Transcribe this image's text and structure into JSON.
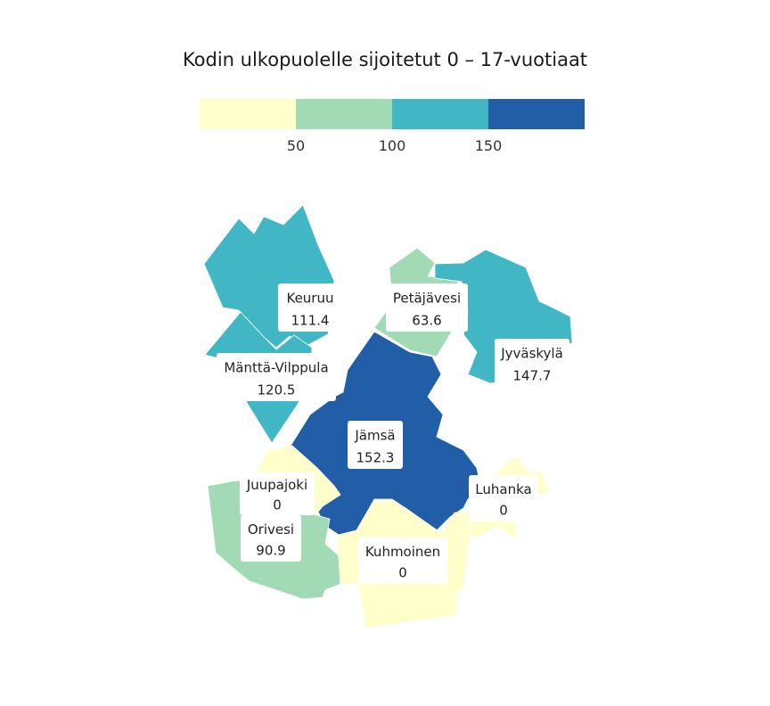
{
  "title": "Kodin ulkopuolelle sijoitetut 0 – 17-vuotiaat",
  "legend": {
    "colors": [
      "#ffffcc",
      "#a1dab4",
      "#41b6c4",
      "#225ea8"
    ],
    "ticks": [
      "50",
      "100",
      "150"
    ]
  },
  "regions": [
    {
      "key": "keuruu",
      "name": "Keuruu",
      "value": "111.4",
      "color": "#41b6c4"
    },
    {
      "key": "petajavesi",
      "name": "Petäjävesi",
      "value": "63.6",
      "color": "#a1dab4"
    },
    {
      "key": "jyvaskyla",
      "name": "Jyväskylä",
      "value": "147.7",
      "color": "#41b6c4"
    },
    {
      "key": "mantta",
      "name": "Mänttä-Vilppula",
      "value": "120.5",
      "color": "#41b6c4"
    },
    {
      "key": "jamsa",
      "name": "Jämsä",
      "value": "152.3",
      "color": "#225ea8"
    },
    {
      "key": "juupajoki",
      "name": "Juupajoki",
      "value": "0",
      "color": "#ffffcc"
    },
    {
      "key": "orivesi",
      "name": "Orivesi",
      "value": "90.9",
      "color": "#a1dab4"
    },
    {
      "key": "luhanka",
      "name": "Luhanka",
      "value": "0",
      "color": "#ffffcc"
    },
    {
      "key": "kuhmoinen",
      "name": "Kuhmoinen",
      "value": "0",
      "color": "#ffffcc"
    }
  ]
}
